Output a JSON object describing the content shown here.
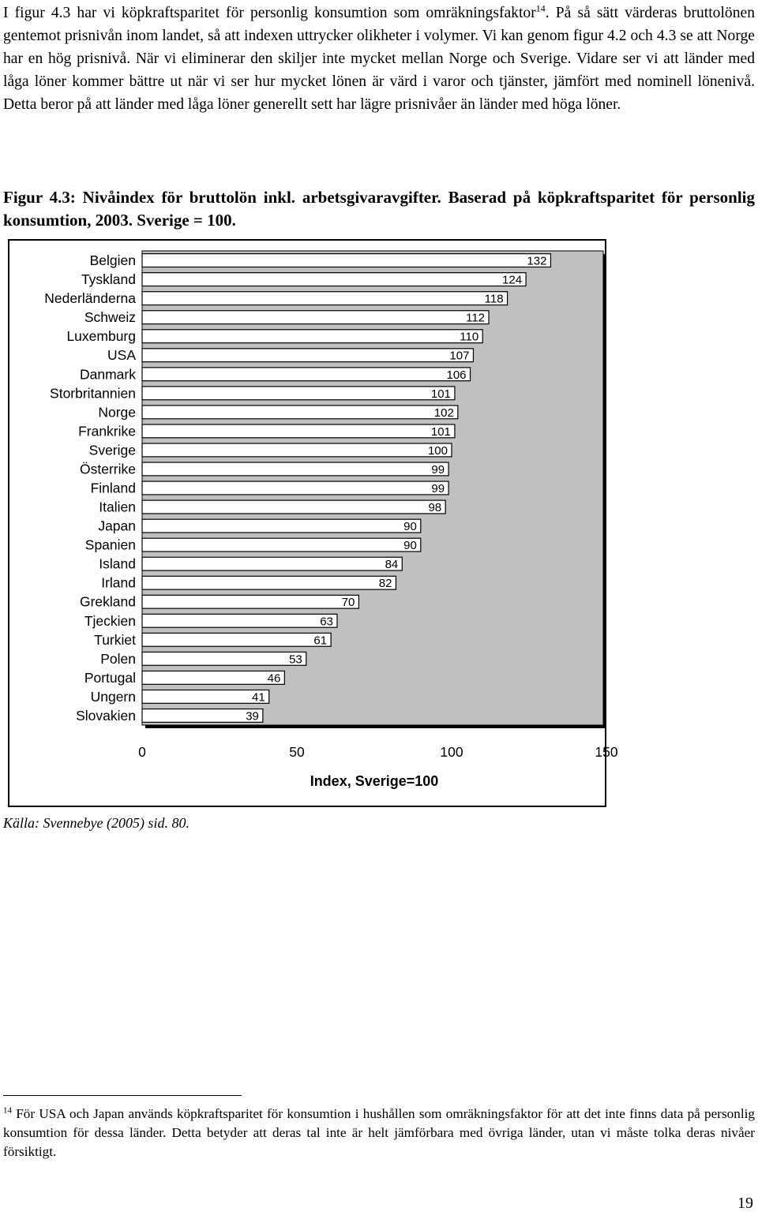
{
  "intro": {
    "part1": "I figur 4.3 har vi köpkraftsparitet för personlig konsumtion som omräkningsfaktor",
    "footnote_ref": "14",
    "part2": ". På så sätt värderas bruttolönen gentemot prisnivån inom landet, så att indexen uttrycker olikheter i volymer. Vi kan genom figur 4.2 och 4.3 se att Norge har en hög prisnivå. När vi eliminerar den skiljer inte mycket mellan Norge och Sverige. Vidare ser vi att länder med låga löner kommer bättre ut när vi ser hur mycket lönen är värd i varor och tjänster, jämfört med nominell lönenivå. Detta beror på att länder med låga löner generellt sett har lägre prisnivåer än länder med höga löner."
  },
  "figure": {
    "caption": "Figur 4.3: Nivåindex för bruttolön inkl. arbetsgivaravgifter. Baserad på köpkraftsparitet för personlig konsumtion, 2003. Sverige = 100.",
    "source": "Källa: Svennebye (2005) sid. 80."
  },
  "chart_data": {
    "type": "bar",
    "orientation": "horizontal",
    "categories": [
      "Belgien",
      "Tyskland",
      "Nederländerna",
      "Schweiz",
      "Luxemburg",
      "USA",
      "Danmark",
      "Storbritannien",
      "Norge",
      "Frankrike",
      "Sverige",
      "Österrike",
      "Finland",
      "Italien",
      "Japan",
      "Spanien",
      "Island",
      "Irland",
      "Grekland",
      "Tjeckien",
      "Turkiet",
      "Polen",
      "Portugal",
      "Ungern",
      "Slovakien"
    ],
    "values": [
      132,
      124,
      118,
      112,
      110,
      107,
      106,
      101,
      102,
      101,
      100,
      99,
      99,
      98,
      90,
      90,
      84,
      82,
      70,
      63,
      61,
      53,
      46,
      41,
      39
    ],
    "title": "",
    "xlabel": "Index, Sverige=100",
    "ylabel": "",
    "xlim": [
      0,
      150
    ],
    "xticks": [
      "0",
      "50",
      "100",
      "150"
    ],
    "data_labels": true,
    "grid": false,
    "legend": "none",
    "plot_background": "#c0c0c0",
    "bar_color": "#ffffff",
    "bar_border_color": "#000000"
  },
  "footnote": {
    "number": "14",
    "text": " För USA och Japan används köpkraftsparitet för konsumtion i hushållen som omräkningsfaktor för att det inte finns data på personlig konsumtion för dessa länder. Detta betyder att deras tal inte är helt jämförbara med övriga länder, utan vi måste tolka deras nivåer försiktigt."
  },
  "page_number": "19"
}
